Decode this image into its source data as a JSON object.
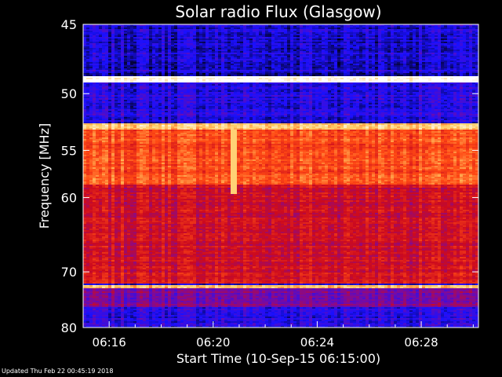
{
  "chart_data": {
    "type": "heatmap",
    "title": "Solar radio Flux (Glasgow)",
    "xlabel": "Start Time (10-Sep-15 06:15:00)",
    "ylabel": "Frequency [MHz]",
    "x_range_minutes": [
      0,
      15.2
    ],
    "x_ticks": [
      {
        "label": "06:16",
        "minute": 1
      },
      {
        "label": "06:20",
        "minute": 5
      },
      {
        "label": "06:24",
        "minute": 9
      },
      {
        "label": "06:28",
        "minute": 13
      }
    ],
    "y_range_mhz": [
      45,
      80
    ],
    "y_scale": "reciprocal",
    "y_ticks": [
      45,
      50,
      55,
      60,
      70,
      80
    ],
    "colormap": [
      "#000014",
      "#1a10ff",
      "#7a0aa0",
      "#cc0a1e",
      "#ff4a14",
      "#ffcc66",
      "#ffffff"
    ],
    "bands": [
      {
        "from_mhz": 45.0,
        "to_mhz": 48.4,
        "level": 0.15
      },
      {
        "from_mhz": 48.6,
        "to_mhz": 49.1,
        "level": 1.0
      },
      {
        "from_mhz": 49.1,
        "to_mhz": 52.3,
        "level": 0.18
      },
      {
        "from_mhz": 52.5,
        "to_mhz": 53.0,
        "level": 0.82
      },
      {
        "from_mhz": 53.0,
        "to_mhz": 58.5,
        "level": 0.66
      },
      {
        "from_mhz": 58.5,
        "to_mhz": 68.0,
        "level": 0.5
      },
      {
        "from_mhz": 68.0,
        "to_mhz": 72.0,
        "level": 0.52
      },
      {
        "from_mhz": 72.2,
        "to_mhz": 72.6,
        "level": 0.8
      },
      {
        "from_mhz": 72.6,
        "to_mhz": 76.0,
        "level": 0.35
      },
      {
        "from_mhz": 76.0,
        "to_mhz": 80.0,
        "level": 0.18
      }
    ],
    "burst": {
      "minute": 5.8,
      "from_mhz": 53.0,
      "to_mhz": 59.5,
      "level": 0.85
    }
  },
  "footer": {
    "updated": "Updated Thu Feb 22 00:45:19 2018"
  }
}
